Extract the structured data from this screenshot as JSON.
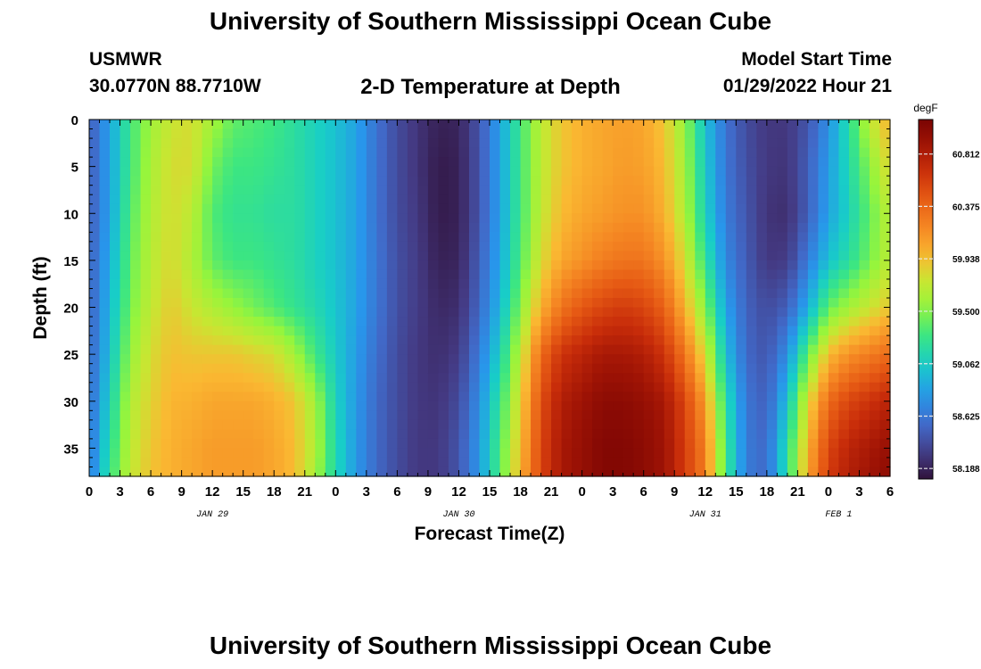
{
  "header": {
    "title": "University of Southern Mississippi Ocean Cube",
    "station": "USMWR",
    "coordinates": "30.0770N  88.7710W",
    "plot_title": "2-D Temperature at Depth",
    "model_start_label": "Model Start Time",
    "model_start_value": "01/29/2022 Hour 21",
    "bottom_title": "University of Southern Mississippi Ocean Cube"
  },
  "chart_data": {
    "type": "heatmap",
    "title": "2-D Temperature at Depth",
    "xlabel": "Forecast Time(Z)",
    "ylabel": "Depth (ft)",
    "x_unit": "hours since JAN 29 00Z",
    "xlim": [
      0,
      78
    ],
    "ylim": [
      38,
      0
    ],
    "x_tick_labels": [
      "0",
      "3",
      "6",
      "9",
      "12",
      "15",
      "18",
      "21",
      "0",
      "3",
      "6",
      "9",
      "12",
      "15",
      "18",
      "21",
      "0",
      "3",
      "6",
      "9",
      "12",
      "15",
      "18",
      "21",
      "0",
      "3",
      "6"
    ],
    "date_labels": [
      {
        "label": "JAN 29",
        "hour": 12
      },
      {
        "label": "JAN 30",
        "hour": 36
      },
      {
        "label": "JAN 31",
        "hour": 60
      },
      {
        "label": "FEB 1",
        "hour": 73
      }
    ],
    "y_ticks": [
      0,
      5,
      10,
      15,
      20,
      25,
      30,
      35
    ],
    "colorbar": {
      "unit": "degF",
      "ticks": [
        "60.812",
        "60.375",
        "59.938",
        "59.500",
        "59.062",
        "58.625",
        "58.188"
      ],
      "min": 58.1,
      "max": 61.1
    },
    "depth_levels": [
      0,
      5,
      10,
      15,
      20,
      25,
      30,
      35,
      38
    ],
    "columns": [
      {
        "hour": 0,
        "temps": [
          58.48,
          58.48,
          58.48,
          58.5,
          58.5,
          58.52,
          58.55,
          58.6,
          58.62
        ]
      },
      {
        "hour": 2,
        "temps": [
          58.85,
          58.85,
          58.85,
          58.9,
          58.95,
          59.0,
          59.1,
          59.2,
          59.25
        ]
      },
      {
        "hour": 4,
        "temps": [
          59.3,
          59.3,
          59.35,
          59.4,
          59.45,
          59.55,
          59.65,
          59.7,
          59.72
        ]
      },
      {
        "hour": 6,
        "temps": [
          59.58,
          59.62,
          59.65,
          59.68,
          59.72,
          59.8,
          59.85,
          59.9,
          59.92
        ]
      },
      {
        "hour": 8,
        "temps": [
          59.75,
          59.8,
          59.8,
          59.82,
          59.88,
          59.93,
          59.98,
          60.0,
          60.0
        ]
      },
      {
        "hour": 10,
        "temps": [
          59.8,
          59.8,
          59.7,
          59.65,
          59.75,
          59.9,
          60.0,
          60.05,
          60.05
        ]
      },
      {
        "hour": 12,
        "temps": [
          59.6,
          59.45,
          59.35,
          59.4,
          59.65,
          59.9,
          60.05,
          60.1,
          60.1
        ]
      },
      {
        "hour": 14,
        "temps": [
          59.4,
          59.3,
          59.25,
          59.3,
          59.55,
          59.9,
          60.05,
          60.1,
          60.1
        ]
      },
      {
        "hour": 16,
        "temps": [
          59.35,
          59.3,
          59.25,
          59.3,
          59.45,
          59.85,
          60.05,
          60.1,
          60.1
        ]
      },
      {
        "hour": 18,
        "temps": [
          59.3,
          59.25,
          59.2,
          59.25,
          59.35,
          59.8,
          60.0,
          60.05,
          60.05
        ]
      },
      {
        "hour": 20,
        "temps": [
          59.2,
          59.2,
          59.2,
          59.2,
          59.25,
          59.6,
          59.9,
          59.95,
          59.95
        ]
      },
      {
        "hour": 22,
        "temps": [
          59.1,
          59.1,
          59.1,
          59.1,
          59.15,
          59.3,
          59.6,
          59.65,
          59.6
        ]
      },
      {
        "hour": 24,
        "temps": [
          59.0,
          59.0,
          59.0,
          59.0,
          59.02,
          59.05,
          59.1,
          59.15,
          59.15
        ]
      },
      {
        "hour": 26,
        "temps": [
          58.85,
          58.85,
          58.85,
          58.85,
          58.85,
          58.82,
          58.8,
          58.8,
          58.8
        ]
      },
      {
        "hour": 28,
        "temps": [
          58.6,
          58.6,
          58.6,
          58.62,
          58.62,
          58.58,
          58.55,
          58.55,
          58.55
        ]
      },
      {
        "hour": 30,
        "temps": [
          58.4,
          58.4,
          58.4,
          58.42,
          58.42,
          58.4,
          58.4,
          58.4,
          58.4
        ]
      },
      {
        "hour": 32,
        "temps": [
          58.28,
          58.28,
          58.3,
          58.32,
          58.32,
          58.3,
          58.3,
          58.3,
          58.3
        ]
      },
      {
        "hour": 34,
        "temps": [
          58.18,
          58.15,
          58.15,
          58.18,
          58.22,
          58.25,
          58.28,
          58.3,
          58.3
        ]
      },
      {
        "hour": 36,
        "temps": [
          58.2,
          58.18,
          58.18,
          58.2,
          58.25,
          58.32,
          58.4,
          58.45,
          58.45
        ]
      },
      {
        "hour": 38,
        "temps": [
          58.45,
          58.45,
          58.45,
          58.5,
          58.55,
          58.65,
          58.75,
          58.8,
          58.8
        ]
      },
      {
        "hour": 40,
        "temps": [
          58.85,
          58.85,
          58.85,
          58.88,
          58.95,
          59.1,
          59.25,
          59.35,
          59.35
        ]
      },
      {
        "hour": 42,
        "temps": [
          59.3,
          59.3,
          59.3,
          59.35,
          59.5,
          59.7,
          59.85,
          59.95,
          60.0
        ]
      },
      {
        "hour": 44,
        "temps": [
          59.7,
          59.7,
          59.72,
          59.8,
          60.0,
          60.35,
          60.5,
          60.55,
          60.55
        ]
      },
      {
        "hour": 46,
        "temps": [
          59.9,
          59.9,
          59.95,
          60.05,
          60.3,
          60.65,
          60.8,
          60.85,
          60.85
        ]
      },
      {
        "hour": 48,
        "temps": [
          60.0,
          60.0,
          60.05,
          60.15,
          60.45,
          60.75,
          60.9,
          60.95,
          60.95
        ]
      },
      {
        "hour": 50,
        "temps": [
          60.05,
          60.05,
          60.1,
          60.25,
          60.55,
          60.85,
          61.0,
          61.05,
          61.05
        ]
      },
      {
        "hour": 52,
        "temps": [
          60.08,
          60.1,
          60.15,
          60.3,
          60.6,
          60.85,
          61.0,
          61.05,
          61.05
        ]
      },
      {
        "hour": 54,
        "temps": [
          60.05,
          60.08,
          60.15,
          60.3,
          60.55,
          60.8,
          60.95,
          61.0,
          61.0
        ]
      },
      {
        "hour": 56,
        "temps": [
          59.9,
          59.95,
          60.0,
          60.15,
          60.4,
          60.65,
          60.85,
          60.9,
          60.9
        ]
      },
      {
        "hour": 58,
        "temps": [
          59.55,
          59.6,
          59.65,
          59.8,
          60.0,
          60.3,
          60.55,
          60.6,
          60.6
        ]
      },
      {
        "hour": 60,
        "temps": [
          59.0,
          59.05,
          59.1,
          59.25,
          59.5,
          59.8,
          60.1,
          60.25,
          60.25
        ]
      },
      {
        "hour": 62,
        "temps": [
          58.6,
          58.62,
          58.65,
          58.72,
          58.85,
          59.0,
          59.2,
          59.3,
          59.3
        ]
      },
      {
        "hour": 64,
        "temps": [
          58.4,
          58.42,
          58.45,
          58.48,
          58.52,
          58.55,
          58.62,
          58.65,
          58.65
        ]
      },
      {
        "hour": 66,
        "temps": [
          58.3,
          58.3,
          58.28,
          58.3,
          58.4,
          58.45,
          58.5,
          58.55,
          58.55
        ]
      },
      {
        "hour": 68,
        "temps": [
          58.3,
          58.28,
          58.25,
          58.32,
          58.5,
          58.75,
          59.0,
          59.2,
          59.2
        ]
      },
      {
        "hour": 70,
        "temps": [
          58.45,
          58.5,
          58.5,
          58.65,
          58.9,
          59.4,
          59.8,
          60.0,
          60.05
        ]
      },
      {
        "hour": 72,
        "temps": [
          58.75,
          58.82,
          58.85,
          59.0,
          59.4,
          59.95,
          60.35,
          60.55,
          60.6
        ]
      },
      {
        "hour": 74,
        "temps": [
          59.2,
          59.15,
          59.1,
          59.2,
          59.6,
          60.15,
          60.55,
          60.75,
          60.8
        ]
      },
      {
        "hour": 76,
        "temps": [
          59.7,
          59.5,
          59.4,
          59.45,
          59.75,
          60.25,
          60.65,
          60.85,
          60.9
        ]
      },
      {
        "hour": 78,
        "temps": [
          60.0,
          59.85,
          59.7,
          59.7,
          59.9,
          60.35,
          60.75,
          60.95,
          61.0
        ]
      }
    ]
  }
}
